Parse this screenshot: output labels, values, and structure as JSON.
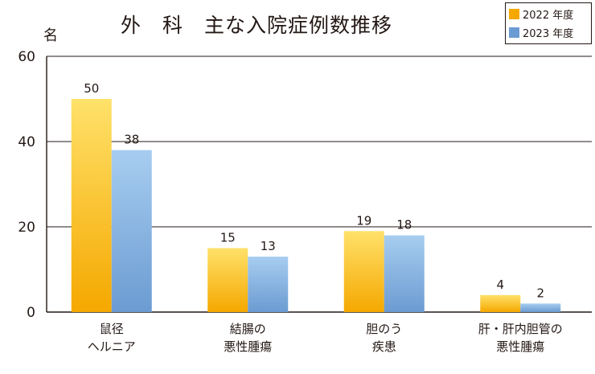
{
  "header": {
    "title": "外　科　主な入院症例数推移",
    "unit": "名"
  },
  "legend": {
    "items": [
      {
        "label": "2022 年度",
        "color": "#f5a800"
      },
      {
        "label": "2023 年度",
        "color": "#6b9bd2"
      }
    ]
  },
  "chart_data": {
    "type": "bar",
    "title": "外　科　主な入院症例数推移",
    "ylabel": "名",
    "ylim": [
      0,
      60
    ],
    "yticks": [
      0,
      20,
      40,
      60
    ],
    "grid": true,
    "legend_position": "top-right",
    "categories": [
      [
        "鼠径",
        "ヘルニア"
      ],
      [
        "結腸の",
        "悪性腫瘍"
      ],
      [
        "胆のう",
        "疾患"
      ],
      [
        "肝・肝内胆管の",
        "悪性腫瘍"
      ]
    ],
    "series": [
      {
        "name": "2022 年度",
        "color": "#f5a800",
        "values": [
          50,
          15,
          19,
          4
        ]
      },
      {
        "name": "2023 年度",
        "color": "#6b9bd2",
        "values": [
          38,
          13,
          18,
          2
        ]
      }
    ]
  }
}
